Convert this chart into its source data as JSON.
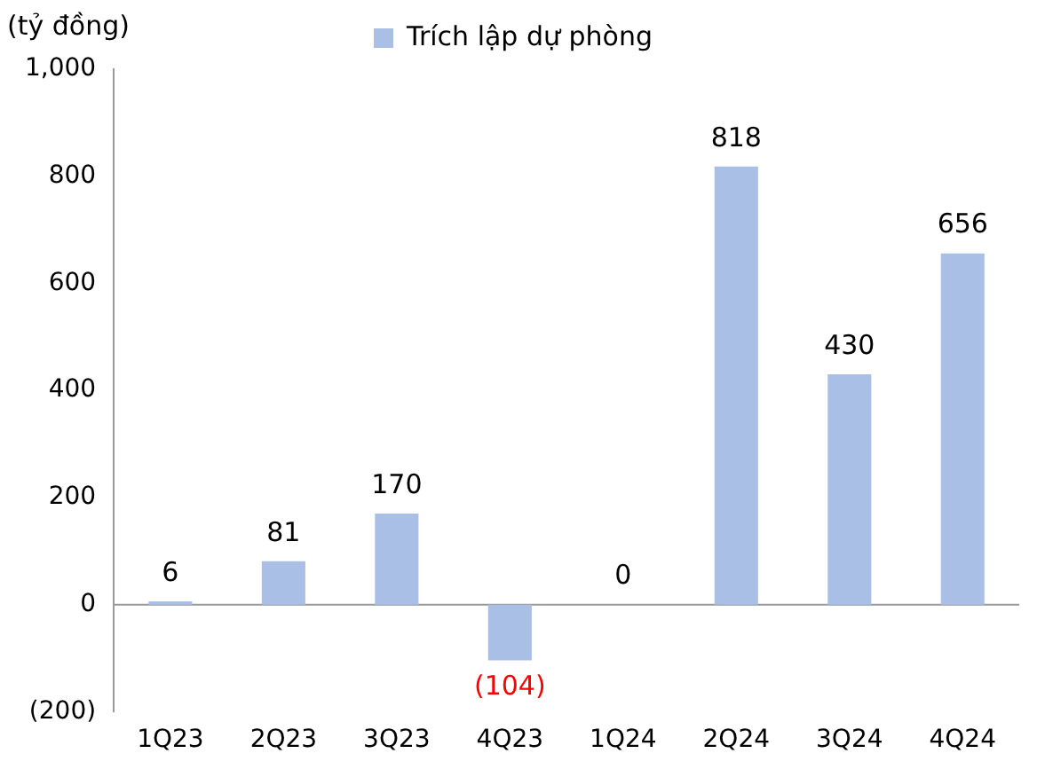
{
  "chart_data": {
    "type": "bar",
    "ylabel": "(tỷ đồng)",
    "categories": [
      "1Q23",
      "2Q23",
      "3Q23",
      "4Q23",
      "1Q24",
      "2Q24",
      "3Q24",
      "4Q24"
    ],
    "series": [
      {
        "name": "Trích lập dự phòng",
        "color": "#a9bfe6",
        "values": [
          6,
          81,
          170,
          -104,
          0,
          818,
          430,
          656
        ],
        "value_labels": [
          "6",
          "81",
          "170",
          "(104)",
          "0",
          "818",
          "430",
          "656"
        ]
      }
    ],
    "ylim": [
      -200,
      1000
    ],
    "yticks": [
      {
        "value": -200,
        "label": "(200)"
      },
      0,
      200,
      400,
      600,
      800,
      {
        "value": 1000,
        "label": "1,000"
      }
    ],
    "ref_lines": [
      {
        "axis": "y",
        "value": 0,
        "color": "#9a9a9a"
      }
    ],
    "grid": false,
    "legend": "top"
  }
}
